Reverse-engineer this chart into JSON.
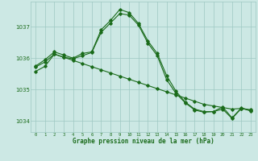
{
  "line1_x": [
    0,
    1,
    2,
    3,
    4,
    5,
    6,
    7,
    8,
    9,
    10,
    11,
    12,
    13,
    14,
    15,
    16,
    17,
    18,
    19,
    20,
    21,
    22,
    23
  ],
  "line1_y": [
    1035.75,
    1035.95,
    1036.2,
    1036.1,
    1036.0,
    1036.15,
    1036.2,
    1036.9,
    1037.2,
    1037.55,
    1037.45,
    1037.1,
    1036.55,
    1036.15,
    1035.45,
    1034.95,
    1034.6,
    1034.38,
    1034.3,
    1034.3,
    1034.45,
    1034.1,
    1034.42,
    1034.32
  ],
  "line2_x": [
    0,
    1,
    2,
    3,
    4,
    5,
    6,
    7,
    8,
    9,
    10,
    11,
    12,
    13,
    14,
    15,
    16,
    17,
    18,
    19,
    20,
    21,
    22,
    23
  ],
  "line2_y": [
    1035.72,
    1035.88,
    1036.13,
    1036.03,
    1035.93,
    1035.83,
    1035.73,
    1035.63,
    1035.53,
    1035.43,
    1035.33,
    1035.23,
    1035.13,
    1035.03,
    1034.93,
    1034.83,
    1034.73,
    1034.63,
    1034.53,
    1034.48,
    1034.43,
    1034.38,
    1034.4,
    1034.36
  ],
  "line3_x": [
    0,
    1,
    2,
    3,
    4,
    5,
    6,
    7,
    8,
    9,
    10,
    11,
    12,
    13,
    14,
    15,
    16,
    17,
    18,
    19,
    20,
    21,
    22,
    23
  ],
  "line3_y": [
    1035.58,
    1035.74,
    1036.13,
    1036.03,
    1035.98,
    1036.08,
    1036.18,
    1036.82,
    1037.12,
    1037.42,
    1037.37,
    1037.05,
    1036.48,
    1036.08,
    1035.32,
    1034.88,
    1034.58,
    1034.35,
    1034.28,
    1034.3,
    1034.38,
    1034.08,
    1034.4,
    1034.33
  ],
  "line_color": "#1a6b1a",
  "bg_color": "#cce8e4",
  "grid_color": "#9ec8c2",
  "xlabel": "Graphe pression niveau de la mer (hPa)",
  "yticks": [
    1034,
    1035,
    1036,
    1037
  ],
  "xticks": [
    0,
    1,
    2,
    3,
    4,
    5,
    6,
    7,
    8,
    9,
    10,
    11,
    12,
    13,
    14,
    15,
    16,
    17,
    18,
    19,
    20,
    21,
    22,
    23
  ],
  "ylim": [
    1033.65,
    1037.8
  ],
  "xlim": [
    -0.5,
    23.5
  ]
}
